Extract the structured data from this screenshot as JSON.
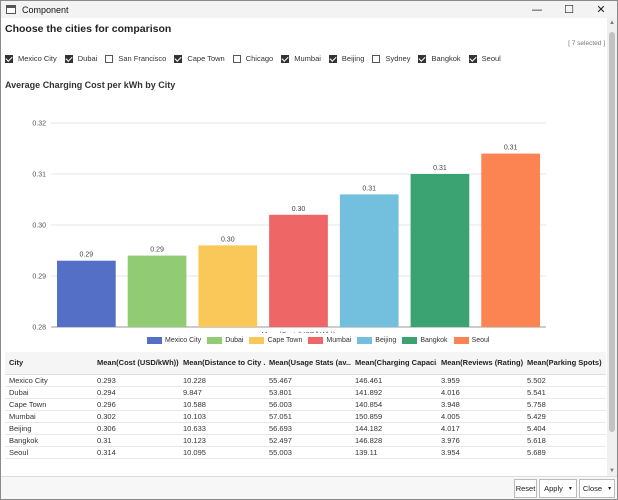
{
  "window": {
    "title": "Component",
    "minimize_glyph": "—",
    "maximize_glyph": "☐",
    "close_glyph": "✕"
  },
  "selector": {
    "title": "Choose the cities for comparison",
    "selected_text": "[ 7 selected ]",
    "cities": [
      {
        "label": "Mexico City",
        "checked": true
      },
      {
        "label": "Dubai",
        "checked": true
      },
      {
        "label": "San Francisco",
        "checked": false
      },
      {
        "label": "Cape Town",
        "checked": true
      },
      {
        "label": "Chicago",
        "checked": false
      },
      {
        "label": "Mumbai",
        "checked": true
      },
      {
        "label": "Beijing",
        "checked": true
      },
      {
        "label": "Sydney",
        "checked": false
      },
      {
        "label": "Bangkok",
        "checked": true
      },
      {
        "label": "Seoul",
        "checked": true
      }
    ]
  },
  "chart_data": {
    "type": "bar",
    "title": "Average Charging Cost per kWh by City",
    "xlabel": "Mean(Cost (USD/kWh))",
    "ylabel": "",
    "ylim": [
      0.28,
      0.32
    ],
    "yticks": [
      {
        "value": 0.28,
        "label": "0.28"
      },
      {
        "value": 0.29,
        "label": "0.29"
      },
      {
        "value": 0.3,
        "label": "0.30"
      },
      {
        "value": 0.31,
        "label": "0.31"
      },
      {
        "value": 0.32,
        "label": "0.32"
      }
    ],
    "grid": true,
    "legend": "bottom",
    "categories": [
      "Mexico City",
      "Dubai",
      "Cape Town",
      "Mumbai",
      "Beijing",
      "Bangkok",
      "Seoul"
    ],
    "values": [
      0.293,
      0.294,
      0.296,
      0.302,
      0.306,
      0.31,
      0.314
    ],
    "data_labels": [
      "0.29",
      "0.29",
      "0.30",
      "0.30",
      "0.31",
      "0.31",
      "0.31"
    ],
    "colors": [
      "#5470c6",
      "#91cc75",
      "#fac858",
      "#ee6666",
      "#73c0de",
      "#3ba272",
      "#fc8452"
    ]
  },
  "table": {
    "headers": [
      "City",
      "Mean(Cost (USD/kWh))",
      "Mean(Distance to City ...",
      "Mean(Usage Stats (av...",
      "Mean(Charging Capaci...",
      "Mean(Reviews (Rating))",
      "Mean(Parking Spots)"
    ],
    "rows": [
      [
        "Mexico City",
        "0.293",
        "10.228",
        "55.467",
        "146.461",
        "3.959",
        "5.502"
      ],
      [
        "Dubai",
        "0.294",
        "9.847",
        "53.801",
        "141.892",
        "4.016",
        "5.541"
      ],
      [
        "Cape Town",
        "0.296",
        "10.588",
        "56.003",
        "140.854",
        "3.948",
        "5.758"
      ],
      [
        "Mumbai",
        "0.302",
        "10.103",
        "57.051",
        "150.859",
        "4.005",
        "5.429"
      ],
      [
        "Beijing",
        "0.306",
        "10.633",
        "56.693",
        "144.182",
        "4.017",
        "5.404"
      ],
      [
        "Bangkok",
        "0.31",
        "10.123",
        "52.497",
        "146.828",
        "3.976",
        "5.618"
      ],
      [
        "Seoul",
        "0.314",
        "10.095",
        "55.003",
        "139.11",
        "3.954",
        "5.689"
      ]
    ]
  },
  "footer": {
    "reset_label": "Reset",
    "apply_label": "Apply",
    "close_label": "Close",
    "caret": "▾"
  }
}
